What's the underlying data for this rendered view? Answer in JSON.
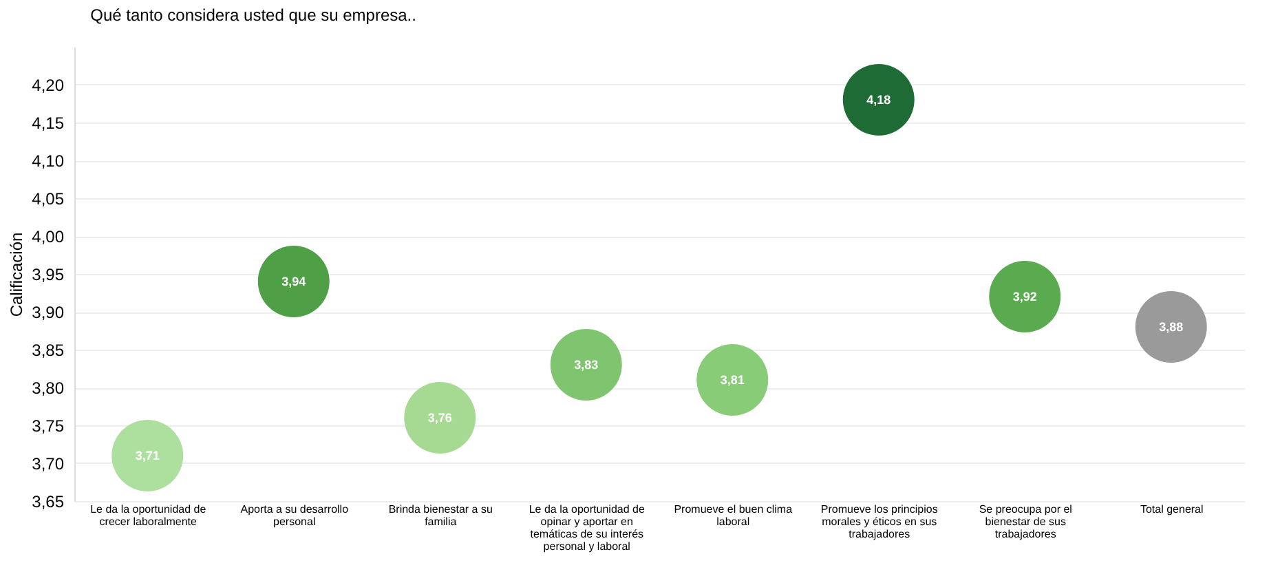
{
  "chart_data": {
    "type": "scatter",
    "title": "Qué tanto considera usted que su empresa..",
    "ylabel": "Calificación",
    "categories": [
      "Le da la oportunidad de crecer laboralmente",
      "Aporta a su desarrollo personal",
      "Brinda bienestar a su familia",
      "Le da la oportunidad de opinar y aportar en temáticas de su interés personal y laboral",
      "Promueve el buen clima laboral",
      "Promueve los principios morales y éticos en sus trabajadores",
      "Se preocupa por el bienestar de sus trabajadores",
      "Total general"
    ],
    "values": [
      3.71,
      3.94,
      3.76,
      3.83,
      3.81,
      4.18,
      3.92,
      3.88
    ],
    "value_labels": [
      "3,71",
      "3,94",
      "3,76",
      "3,83",
      "3,81",
      "4,18",
      "3,92",
      "3,88"
    ],
    "colors": [
      "#addf9e",
      "#4e9f46",
      "#a6da93",
      "#7fc46f",
      "#88cc78",
      "#1f6b35",
      "#5aab50",
      "#9a9a9a"
    ],
    "marker": "circle",
    "ylim": [
      3.65,
      4.25
    ],
    "yticks": [
      {
        "value": 3.65,
        "label": "3,65"
      },
      {
        "value": 3.7,
        "label": "3,70"
      },
      {
        "value": 3.75,
        "label": "3,75"
      },
      {
        "value": 3.8,
        "label": "3,80"
      },
      {
        "value": 3.85,
        "label": "3,85"
      },
      {
        "value": 3.9,
        "label": "3,90"
      },
      {
        "value": 3.95,
        "label": "3,95"
      },
      {
        "value": 4.0,
        "label": "4,00"
      },
      {
        "value": 4.05,
        "label": "4,05"
      },
      {
        "value": 4.1,
        "label": "4,10"
      },
      {
        "value": 4.15,
        "label": "4,15"
      },
      {
        "value": 4.2,
        "label": "4,20"
      }
    ],
    "grid": "y"
  }
}
